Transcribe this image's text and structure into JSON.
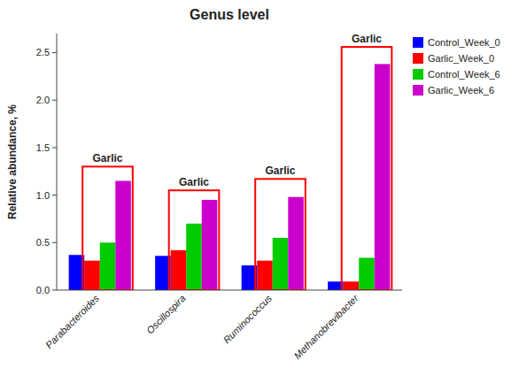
{
  "chart_data": {
    "type": "bar",
    "title": "Genus level",
    "ylabel": "Relative abundance, %",
    "categories": [
      "Parabacteroides",
      "Oscillospira",
      "Ruminococcus",
      "Methanobrevibacter"
    ],
    "series": [
      {
        "name": "Control_Week_0",
        "color": "#0000ff",
        "values": [
          0.37,
          0.36,
          0.26,
          0.09
        ]
      },
      {
        "name": "Garlic_Week_0",
        "color": "#ff0000",
        "values": [
          0.31,
          0.42,
          0.31,
          0.09
        ]
      },
      {
        "name": "Control_Week_6",
        "color": "#00cc00",
        "values": [
          0.5,
          0.7,
          0.55,
          0.34
        ]
      },
      {
        "name": "Garlic_Week_6",
        "color": "#cc00cc",
        "values": [
          1.15,
          0.95,
          0.98,
          2.38
        ]
      }
    ],
    "box_tops": [
      1.3,
      1.05,
      1.17,
      2.56
    ],
    "box_label": "Garlic",
    "ylim": [
      0,
      2.7
    ],
    "yticks": [
      {
        "value": 0,
        "label": "0.0"
      },
      0.5,
      {
        "value": 1,
        "label": "1.0"
      },
      1.5,
      {
        "value": 2,
        "label": "2.0"
      },
      2.5
    ],
    "grid": false,
    "legend": "upper right"
  }
}
